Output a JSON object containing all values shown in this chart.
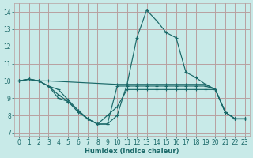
{
  "xlabel": "Humidex (Indice chaleur)",
  "bg_color": "#c8eae8",
  "grid_color": "#b8a0a0",
  "line_color": "#1a6868",
  "xlim": [
    -0.5,
    23.5
  ],
  "ylim": [
    6.8,
    14.5
  ],
  "yticks": [
    7,
    8,
    9,
    10,
    11,
    12,
    13,
    14
  ],
  "xticks": [
    0,
    1,
    2,
    3,
    4,
    5,
    6,
    7,
    8,
    9,
    10,
    11,
    12,
    13,
    14,
    15,
    16,
    17,
    18,
    19,
    20,
    21,
    22,
    23
  ],
  "lines": [
    {
      "x": [
        0,
        1,
        2,
        3,
        10,
        11,
        12,
        13,
        14,
        15,
        16,
        17,
        18,
        19,
        20,
        21,
        22,
        23
      ],
      "y": [
        10.0,
        10.1,
        10.0,
        10.0,
        9.8,
        9.8,
        9.8,
        9.8,
        9.8,
        9.8,
        9.8,
        9.8,
        9.8,
        9.8,
        9.5,
        8.2,
        7.8,
        7.8
      ]
    },
    {
      "x": [
        0,
        1,
        2,
        3,
        4,
        5,
        6,
        7,
        8,
        9,
        10,
        11,
        12,
        13,
        14,
        15,
        16,
        17,
        18,
        19,
        20,
        21,
        22,
        23
      ],
      "y": [
        10.0,
        10.1,
        10.0,
        9.7,
        9.0,
        8.8,
        8.3,
        7.8,
        7.5,
        7.5,
        8.0,
        9.8,
        12.5,
        14.1,
        13.5,
        12.8,
        12.5,
        10.5,
        10.2,
        9.8,
        9.5,
        8.2,
        7.8,
        7.8
      ]
    },
    {
      "x": [
        0,
        1,
        2,
        3,
        4,
        5,
        6,
        7,
        8,
        9,
        10,
        11,
        12,
        13,
        14,
        15,
        16,
        17,
        18,
        19,
        20,
        21,
        22,
        23
      ],
      "y": [
        10.0,
        10.1,
        10.0,
        9.7,
        9.5,
        8.9,
        8.3,
        7.8,
        7.5,
        7.5,
        9.7,
        9.7,
        9.7,
        9.7,
        9.7,
        9.7,
        9.7,
        9.7,
        9.7,
        9.7,
        9.5,
        8.2,
        7.8,
        7.8
      ]
    },
    {
      "x": [
        0,
        1,
        2,
        3,
        4,
        5,
        6,
        7,
        8,
        9,
        10,
        11,
        12,
        13,
        14,
        15,
        16,
        17,
        18,
        19,
        20,
        21,
        22,
        23
      ],
      "y": [
        10.0,
        10.1,
        10.0,
        9.7,
        9.2,
        8.8,
        8.2,
        7.8,
        7.5,
        8.0,
        8.5,
        9.5,
        9.5,
        9.5,
        9.5,
        9.5,
        9.5,
        9.5,
        9.5,
        9.5,
        9.5,
        8.2,
        7.8,
        7.8
      ]
    }
  ]
}
